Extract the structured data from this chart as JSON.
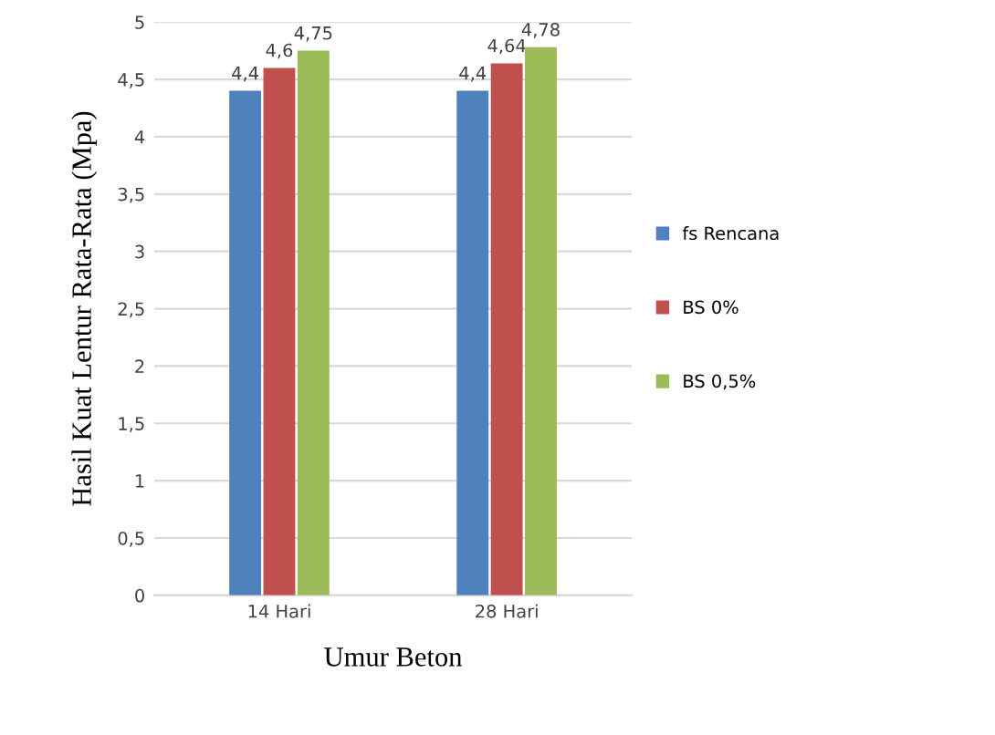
{
  "chart_data": {
    "type": "bar",
    "xlabel": "Umur Beton",
    "ylabel": "Hasil Kuat Lentur Rata-Rata (Mpa)",
    "categories": [
      "14 Hari",
      "28 Hari"
    ],
    "series": [
      {
        "name": "fs Rencana",
        "color": "#4f81bd",
        "values": [
          4.4,
          4.4
        ],
        "value_labels": [
          "4,4",
          "4,4"
        ]
      },
      {
        "name": "BS 0%",
        "color": "#c0504d",
        "values": [
          4.6,
          4.64
        ],
        "value_labels": [
          "4,6",
          "4,64"
        ]
      },
      {
        "name": "BS 0,5%",
        "color": "#9bbb59",
        "values": [
          4.75,
          4.78
        ],
        "value_labels": [
          "4,75",
          "4,78"
        ]
      }
    ],
    "ylim": [
      0,
      5
    ],
    "yticks": [
      0,
      {
        "value": 0.5,
        "label": "0,5"
      },
      1,
      {
        "value": 1.5,
        "label": "1,5"
      },
      2,
      {
        "value": 2.5,
        "label": "2,5"
      },
      3,
      {
        "value": 3.5,
        "label": "3,5"
      },
      4,
      {
        "value": 4.5,
        "label": "4,5"
      },
      5
    ],
    "grid": "y",
    "legend": "right"
  }
}
